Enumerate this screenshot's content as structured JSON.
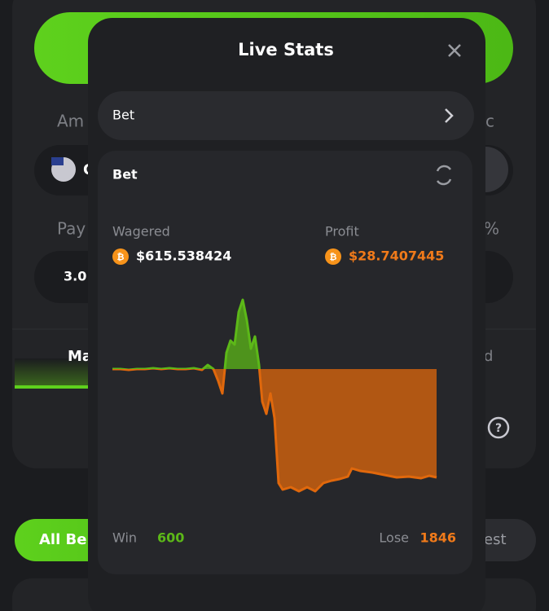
{
  "background": {
    "amount_label": "Am",
    "currency_value": "C",
    "side_label": "c",
    "payout_label": "Pay",
    "payout_value": "3.0",
    "percent_label": "%",
    "tab_manual": "Ma",
    "tab_other": "d",
    "filter_all": "All Be",
    "filter_other": "est"
  },
  "modal": {
    "title": "Live Stats",
    "select": "Bet",
    "card": {
      "title": "Bet",
      "wagered_label": "Wagered",
      "wagered_value": "$615.538424",
      "profit_label": "Profit",
      "profit_value": "$28.7407445",
      "win_label": "Win",
      "win_value": 600,
      "lose_label": "Lose",
      "lose_value": 1846,
      "chart": {
        "type": "area",
        "xlim": [
          0,
          398
        ],
        "ylim": [
          -160,
          90
        ],
        "x": [
          0,
          10,
          20,
          30,
          40,
          50,
          60,
          70,
          80,
          90,
          100,
          110,
          117,
          124,
          130,
          135,
          140,
          145,
          150,
          155,
          160,
          165,
          170,
          175,
          180,
          184,
          189,
          194,
          199,
          204,
          209,
          219,
          229,
          239,
          249,
          259,
          269,
          279,
          289,
          294,
          304,
          319,
          334,
          349,
          364,
          379,
          389,
          398
        ],
        "values": [
          0,
          0,
          -1,
          0,
          0,
          1,
          0,
          1,
          0,
          0,
          1,
          -1,
          5,
          0,
          -15,
          -30,
          20,
          35,
          30,
          70,
          85,
          60,
          25,
          40,
          5,
          -40,
          -55,
          -30,
          -60,
          -140,
          -148,
          -145,
          -150,
          -145,
          -150,
          -140,
          -137,
          -135,
          -132,
          -122,
          -125,
          -127,
          -130,
          -133,
          -132,
          -134,
          -131,
          -133
        ],
        "positive_color": "#5cb818",
        "negative_color": "#e0680c"
      }
    }
  }
}
